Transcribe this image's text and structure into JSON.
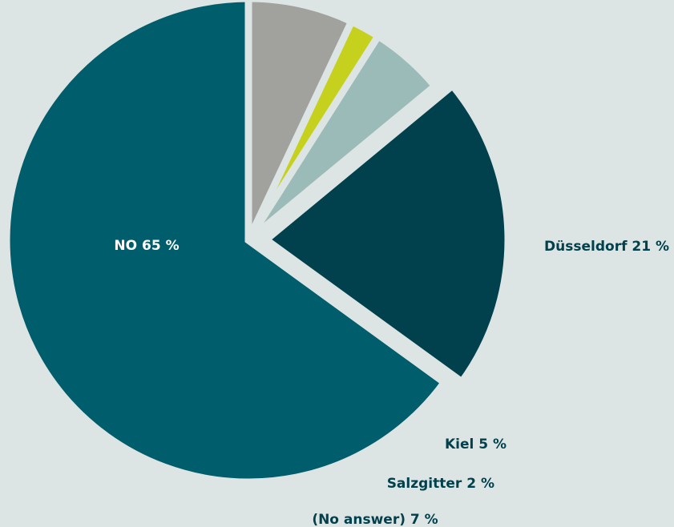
{
  "chart_data": {
    "type": "pie",
    "title": "",
    "slices": [
      {
        "label": "NO",
        "value_text": "65 %",
        "value": 65,
        "color": "#005d6c",
        "label_color": "#ffffff"
      },
      {
        "label": "Düsseldorf",
        "value_text": "21 %",
        "value": 21,
        "color": "#00414d",
        "label_color": "#00414d"
      },
      {
        "label": "Kiel",
        "value_text": "5 %",
        "value": 5,
        "color": "#9bbbb8",
        "label_color": "#00414d"
      },
      {
        "label": "Salzgitter",
        "value_text": "2 %",
        "value": 2,
        "color": "#c5d11c",
        "label_color": "#00414d"
      },
      {
        "label": "(No answer)",
        "value_text": "7 %",
        "value": 7,
        "color": "#a1a19e",
        "label_color": "#00414d"
      }
    ],
    "start_angle_deg": 90,
    "direction": "counterclockwise",
    "exploded_slices": [
      "Düsseldorf"
    ],
    "legend": "none"
  }
}
